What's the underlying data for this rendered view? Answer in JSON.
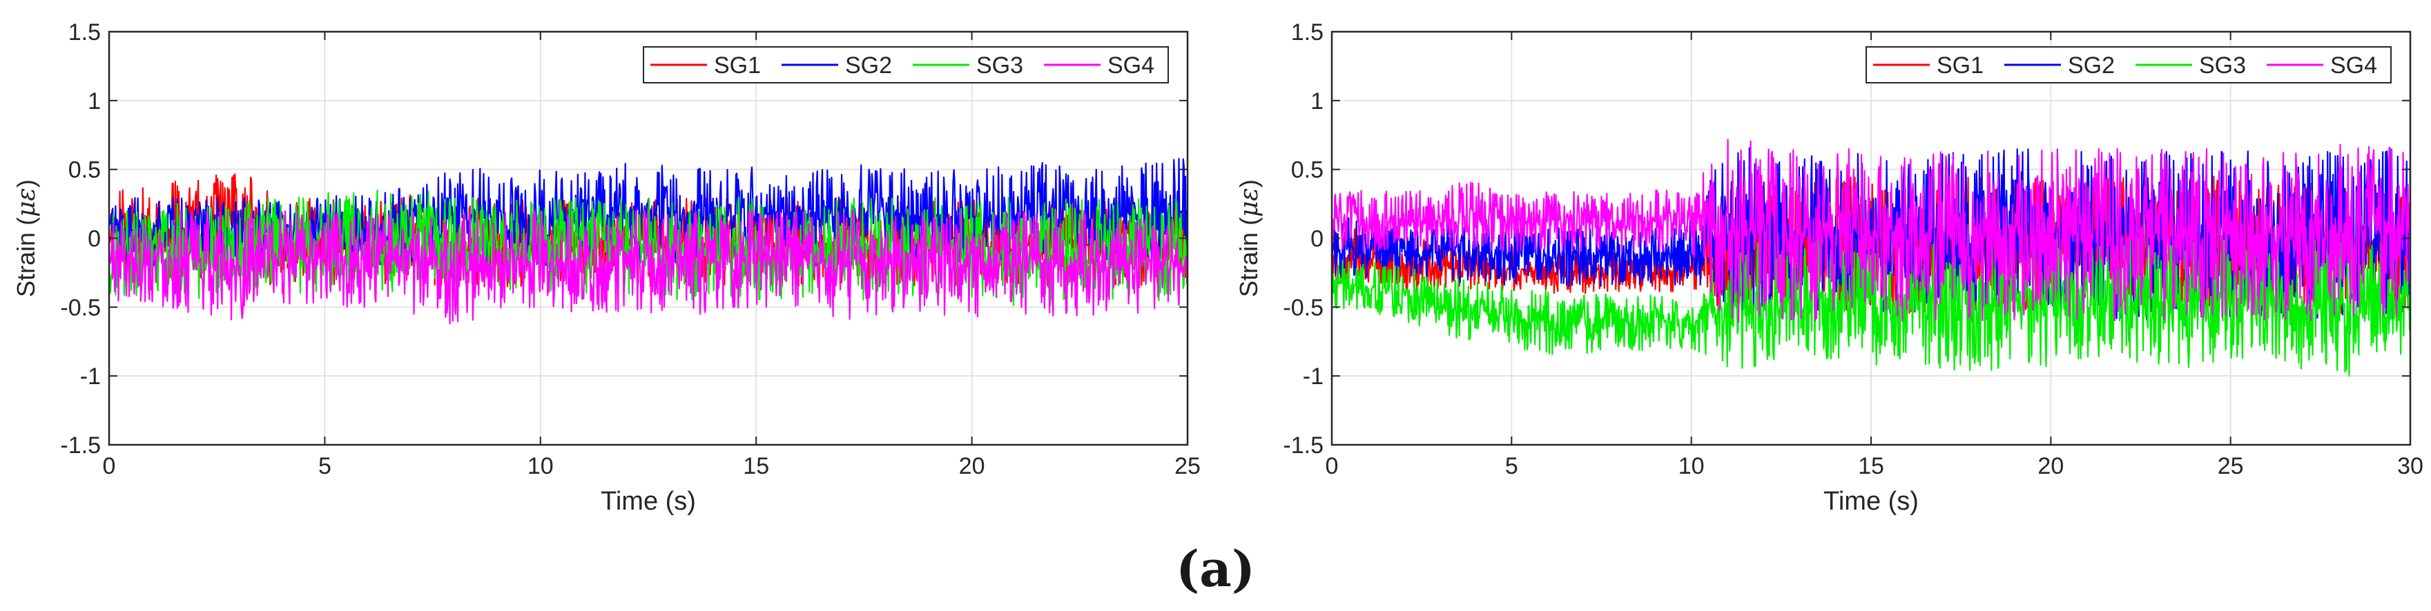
{
  "figure": {
    "caption": "(a)"
  },
  "chart_data": [
    {
      "type": "line",
      "title": "",
      "xlabel": "Time (s)",
      "ylabel": "Strain (με)",
      "ylabel_main": "Strain (",
      "ylabel_symbol": "με",
      "ylabel_close": ")",
      "xlim": [
        0,
        25
      ],
      "ylim": [
        -1.5,
        1.5
      ],
      "xticks": [
        0,
        5,
        10,
        15,
        20,
        25
      ],
      "yticks": [
        -1.5,
        -1,
        -0.5,
        0,
        0.5,
        1,
        1.5
      ],
      "xtick_labels": [
        "0",
        "5",
        "10",
        "15",
        "20",
        "25"
      ],
      "ytick_labels": [
        "-1.5",
        "-1",
        "-0.5",
        "0",
        "0.5",
        "1",
        "1.5"
      ],
      "grid": true,
      "legend_position": "top-right",
      "series": [
        {
          "name": "SG1",
          "color": "#ff0000",
          "x": [
            0,
            1,
            2,
            3,
            4,
            5,
            6,
            7,
            8,
            9,
            10,
            11,
            12,
            13,
            14,
            15,
            16,
            17,
            18,
            19,
            20,
            21,
            22,
            23,
            24,
            25
          ],
          "y_upper": [
            0.35,
            0.38,
            0.45,
            0.5,
            0.35,
            0.3,
            0.3,
            0.35,
            0.3,
            0.3,
            0.3,
            0.3,
            0.3,
            0.3,
            0.3,
            0.3,
            0.3,
            0.3,
            0.3,
            0.3,
            0.3,
            0.3,
            0.3,
            0.3,
            0.3,
            0.3
          ],
          "y_lower": [
            -0.3,
            -0.3,
            -0.3,
            -0.35,
            -0.35,
            -0.35,
            -0.35,
            -0.35,
            -0.35,
            -0.35,
            -0.35,
            -0.35,
            -0.35,
            -0.35,
            -0.35,
            -0.35,
            -0.35,
            -0.35,
            -0.35,
            -0.35,
            -0.35,
            -0.35,
            -0.35,
            -0.35,
            -0.35,
            -0.35
          ]
        },
        {
          "name": "SG2",
          "color": "#0000ff",
          "x": [
            0,
            1,
            2,
            3,
            4,
            5,
            6,
            7,
            8,
            9,
            10,
            11,
            12,
            13,
            14,
            15,
            16,
            17,
            18,
            19,
            20,
            21,
            22,
            23,
            24,
            25
          ],
          "y_upper": [
            0.3,
            0.3,
            0.3,
            0.3,
            0.3,
            0.3,
            0.35,
            0.4,
            0.5,
            0.55,
            0.5,
            0.5,
            0.55,
            0.55,
            0.5,
            0.55,
            0.55,
            0.55,
            0.55,
            0.5,
            0.5,
            0.55,
            0.55,
            0.5,
            0.55,
            0.6
          ],
          "y_lower": [
            -0.2,
            -0.2,
            -0.2,
            -0.2,
            -0.2,
            -0.2,
            -0.2,
            -0.2,
            -0.2,
            -0.2,
            -0.2,
            -0.2,
            -0.2,
            -0.2,
            -0.2,
            -0.2,
            -0.2,
            -0.2,
            -0.2,
            -0.2,
            -0.2,
            -0.2,
            -0.2,
            -0.2,
            -0.2,
            -0.2
          ]
        },
        {
          "name": "SG3",
          "color": "#00ee00",
          "x": [
            0,
            1,
            2,
            3,
            4,
            5,
            6,
            7,
            8,
            9,
            10,
            11,
            12,
            13,
            14,
            15,
            16,
            17,
            18,
            19,
            20,
            21,
            22,
            23,
            24,
            25
          ],
          "y_upper": [
            0.2,
            0.25,
            0.25,
            0.3,
            0.3,
            0.35,
            0.35,
            0.4,
            0.3,
            0.3,
            0.3,
            0.3,
            0.3,
            0.3,
            0.3,
            0.3,
            0.3,
            0.3,
            0.3,
            0.3,
            0.3,
            0.3,
            0.3,
            0.3,
            0.3,
            0.3
          ],
          "y_lower": [
            -0.45,
            -0.45,
            -0.45,
            -0.4,
            -0.4,
            -0.4,
            -0.4,
            -0.4,
            -0.4,
            -0.4,
            -0.4,
            -0.4,
            -0.4,
            -0.45,
            -0.45,
            -0.45,
            -0.45,
            -0.45,
            -0.45,
            -0.45,
            -0.45,
            -0.5,
            -0.5,
            -0.45,
            -0.45,
            -0.5
          ]
        },
        {
          "name": "SG4",
          "color": "#ff00ff",
          "x": [
            0,
            1,
            2,
            3,
            4,
            5,
            6,
            7,
            8,
            9,
            10,
            11,
            12,
            13,
            14,
            15,
            16,
            17,
            18,
            19,
            20,
            21,
            22,
            23,
            24,
            25
          ],
          "y_upper": [
            0.2,
            0.2,
            0.2,
            0.2,
            0.2,
            0.2,
            0.2,
            0.2,
            0.2,
            0.2,
            0.2,
            0.2,
            0.2,
            0.2,
            0.2,
            0.2,
            0.2,
            0.2,
            0.2,
            0.2,
            0.2,
            0.2,
            0.2,
            0.2,
            0.2,
            0.2
          ],
          "y_lower": [
            -0.5,
            -0.5,
            -0.55,
            -0.6,
            -0.5,
            -0.5,
            -0.5,
            -0.55,
            -0.65,
            -0.55,
            -0.55,
            -0.55,
            -0.55,
            -0.6,
            -0.55,
            -0.55,
            -0.55,
            -0.6,
            -0.55,
            -0.55,
            -0.6,
            -0.55,
            -0.6,
            -0.55,
            -0.55,
            -0.5
          ]
        }
      ]
    },
    {
      "type": "line",
      "title": "",
      "xlabel": "Time (s)",
      "ylabel": "Strain (με)",
      "ylabel_main": "Strain (",
      "ylabel_symbol": "με",
      "ylabel_close": ")",
      "xlim": [
        0,
        30
      ],
      "ylim": [
        -1.5,
        1.5
      ],
      "xticks": [
        0,
        5,
        10,
        15,
        20,
        25,
        30
      ],
      "yticks": [
        -1.5,
        -1,
        -0.5,
        0,
        0.5,
        1,
        1.5
      ],
      "xtick_labels": [
        "0",
        "5",
        "10",
        "15",
        "20",
        "25",
        "30"
      ],
      "ytick_labels": [
        "-1.5",
        "-1",
        "-0.5",
        "0",
        "0.5",
        "1",
        "1.5"
      ],
      "grid": true,
      "legend_position": "top-right",
      "series": [
        {
          "name": "SG1",
          "color": "#ff0000",
          "x": [
            0,
            1,
            2,
            3,
            4,
            5,
            6,
            7,
            8,
            9,
            10,
            11,
            12,
            13,
            14,
            15,
            16,
            17,
            18,
            19,
            20,
            21,
            22,
            23,
            24,
            25,
            26,
            27,
            28,
            29,
            30
          ],
          "y_upper": [
            0.1,
            0.05,
            0.0,
            0.0,
            -0.05,
            -0.05,
            -0.1,
            -0.1,
            -0.1,
            -0.1,
            -0.05,
            0.4,
            0.45,
            0.45,
            0.45,
            0.45,
            0.45,
            0.45,
            0.45,
            0.45,
            0.45,
            0.45,
            0.45,
            0.45,
            0.45,
            0.45,
            0.45,
            0.45,
            0.45,
            0.45,
            0.45
          ],
          "y_lower": [
            -0.35,
            -0.35,
            -0.4,
            -0.4,
            -0.4,
            -0.4,
            -0.4,
            -0.4,
            -0.4,
            -0.4,
            -0.4,
            -0.55,
            -0.55,
            -0.55,
            -0.55,
            -0.55,
            -0.55,
            -0.55,
            -0.55,
            -0.55,
            -0.55,
            -0.55,
            -0.55,
            -0.55,
            -0.55,
            -0.55,
            -0.55,
            -0.55,
            -0.55,
            -0.55,
            -0.55
          ]
        },
        {
          "name": "SG2",
          "color": "#0000ff",
          "x": [
            0,
            1,
            2,
            3,
            4,
            5,
            6,
            7,
            8,
            9,
            10,
            11,
            12,
            13,
            14,
            15,
            16,
            17,
            18,
            19,
            20,
            21,
            22,
            23,
            24,
            25,
            26,
            27,
            28,
            29,
            30
          ],
          "y_upper": [
            0.15,
            0.15,
            0.1,
            0.1,
            0.1,
            0.1,
            0.1,
            0.1,
            0.1,
            0.1,
            0.15,
            0.7,
            0.7,
            0.65,
            0.65,
            0.65,
            0.65,
            0.65,
            0.65,
            0.65,
            0.65,
            0.65,
            0.65,
            0.65,
            0.65,
            0.65,
            0.65,
            0.65,
            0.65,
            0.65,
            0.7
          ],
          "y_lower": [
            -0.3,
            -0.3,
            -0.3,
            -0.3,
            -0.35,
            -0.35,
            -0.35,
            -0.35,
            -0.35,
            -0.35,
            -0.35,
            -0.6,
            -0.6,
            -0.6,
            -0.6,
            -0.6,
            -0.6,
            -0.6,
            -0.6,
            -0.6,
            -0.6,
            -0.6,
            -0.6,
            -0.6,
            -0.6,
            -0.6,
            -0.6,
            -0.6,
            -0.6,
            -0.6,
            -0.6
          ]
        },
        {
          "name": "SG3",
          "color": "#00ee00",
          "x": [
            0,
            1,
            2,
            3,
            4,
            5,
            6,
            7,
            8,
            9,
            10,
            11,
            12,
            13,
            14,
            15,
            16,
            17,
            18,
            19,
            20,
            21,
            22,
            23,
            24,
            25,
            26,
            27,
            28,
            29,
            30
          ],
          "y_upper": [
            -0.15,
            -0.15,
            -0.2,
            -0.25,
            -0.3,
            -0.35,
            -0.35,
            -0.4,
            -0.4,
            -0.4,
            -0.45,
            0.0,
            0.0,
            0.0,
            0.0,
            0.0,
            0.0,
            0.0,
            0.0,
            0.0,
            0.0,
            0.0,
            0.0,
            0.0,
            0.0,
            0.0,
            0.0,
            0.0,
            0.0,
            0.0,
            0.0
          ],
          "y_lower": [
            -0.5,
            -0.55,
            -0.6,
            -0.7,
            -0.75,
            -0.8,
            -0.85,
            -0.85,
            -0.85,
            -0.8,
            -0.8,
            -0.95,
            -0.95,
            -0.9,
            -0.9,
            -0.95,
            -0.9,
            -0.95,
            -1.0,
            -0.9,
            -0.95,
            -0.9,
            -0.9,
            -0.95,
            -0.95,
            -0.9,
            -0.95,
            -1.0,
            -1.05,
            -0.9,
            -0.85
          ]
        },
        {
          "name": "SG4",
          "color": "#ff00ff",
          "x": [
            0,
            1,
            2,
            3,
            4,
            5,
            6,
            7,
            8,
            9,
            10,
            11,
            12,
            13,
            14,
            15,
            16,
            17,
            18,
            19,
            20,
            21,
            22,
            23,
            24,
            25,
            26,
            27,
            28,
            29,
            30
          ],
          "y_upper": [
            0.35,
            0.35,
            0.35,
            0.35,
            0.45,
            0.35,
            0.35,
            0.35,
            0.35,
            0.35,
            0.35,
            0.75,
            0.7,
            0.65,
            0.65,
            0.65,
            0.65,
            0.65,
            0.65,
            0.65,
            0.65,
            0.65,
            0.65,
            0.65,
            0.65,
            0.65,
            0.65,
            0.65,
            0.7,
            0.7,
            0.7
          ],
          "y_lower": [
            -0.1,
            -0.1,
            -0.1,
            -0.1,
            -0.1,
            -0.1,
            -0.1,
            -0.1,
            -0.1,
            -0.1,
            -0.1,
            -0.65,
            -0.6,
            -0.6,
            -0.6,
            -0.6,
            -0.6,
            -0.6,
            -0.6,
            -0.6,
            -0.6,
            -0.6,
            -0.6,
            -0.6,
            -0.6,
            -0.6,
            -0.6,
            -0.6,
            -0.6,
            -0.6,
            -0.6
          ]
        }
      ]
    }
  ]
}
